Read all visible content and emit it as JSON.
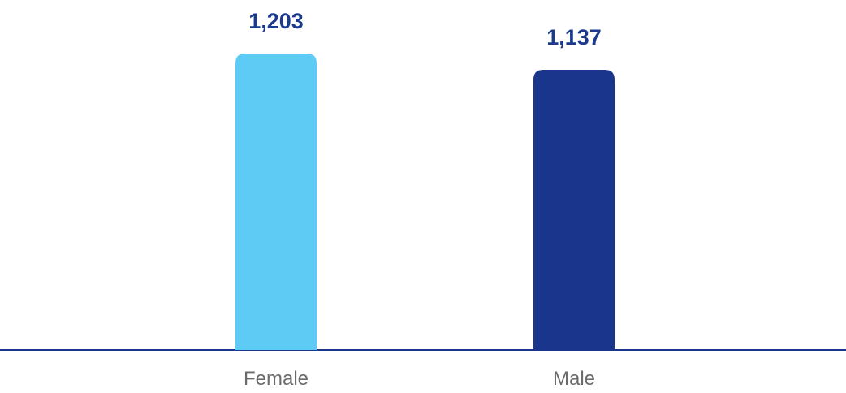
{
  "chart_data": {
    "type": "bar",
    "categories": [
      "Female",
      "Male"
    ],
    "values": [
      1203,
      1137
    ],
    "value_labels": [
      "1,203",
      "1,137"
    ],
    "colors": [
      "#5ecbf5",
      "#1a358c"
    ]
  }
}
